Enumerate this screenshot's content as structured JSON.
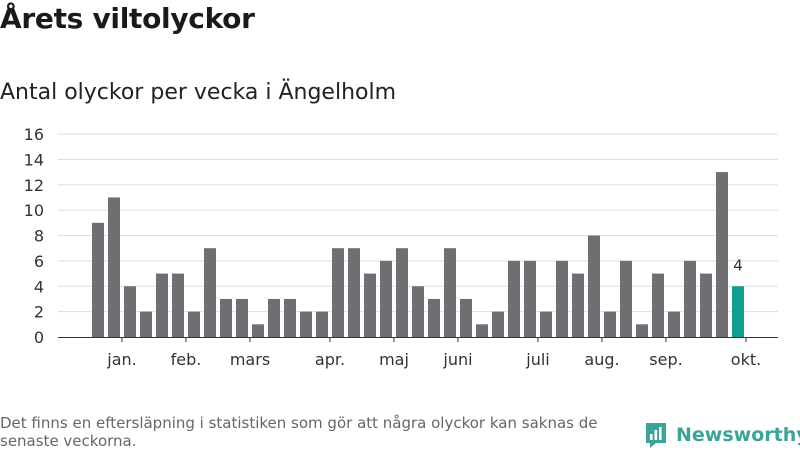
{
  "title": "Årets viltolyckor",
  "subtitle": "Antal olyckor per vecka i Ängelholm",
  "footnote": "Det finns en eftersläpning i statistiken som gör att några olyckor kan saknas de senaste veckorna.",
  "brand": {
    "name": "Newsworthy",
    "icon": "newsworthy-logo-icon",
    "color": "#3aa39a"
  },
  "colors": {
    "bar": "#6f6e73",
    "highlight": "#0f9d94",
    "grid": "#dddddd",
    "axis": "#333333"
  },
  "chart_data": {
    "type": "bar",
    "title": "Antal olyckor per vecka i Ängelholm",
    "xlabel": "",
    "ylabel": "",
    "ylim": [
      0,
      16
    ],
    "yticks": [
      0,
      2,
      4,
      6,
      8,
      10,
      12,
      14,
      16
    ],
    "grid": true,
    "values": [
      9,
      11,
      4,
      2,
      5,
      5,
      2,
      7,
      3,
      3,
      1,
      3,
      3,
      2,
      2,
      7,
      7,
      5,
      6,
      7,
      4,
      3,
      7,
      3,
      1,
      2,
      6,
      6,
      2,
      6,
      5,
      8,
      2,
      6,
      1,
      5,
      2,
      6,
      5,
      13,
      4
    ],
    "highlight_index": 40,
    "highlight_label": "4",
    "month_labels": [
      {
        "label": "jan.",
        "at": 1.5
      },
      {
        "label": "feb.",
        "at": 5.5
      },
      {
        "label": "mars",
        "at": 9.5
      },
      {
        "label": "apr.",
        "at": 14.5
      },
      {
        "label": "maj",
        "at": 18.5
      },
      {
        "label": "juni",
        "at": 22.5
      },
      {
        "label": "juli",
        "at": 27.5
      },
      {
        "label": "aug.",
        "at": 31.5
      },
      {
        "label": "sep.",
        "at": 35.5
      },
      {
        "label": "okt.",
        "at": 40.5
      }
    ]
  }
}
